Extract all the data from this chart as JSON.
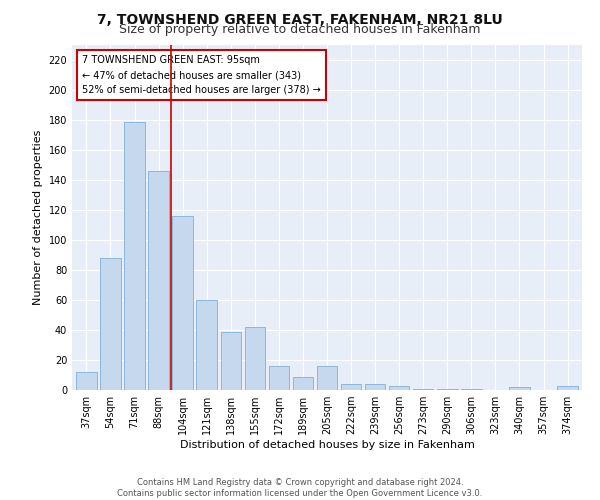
{
  "title": "7, TOWNSHEND GREEN EAST, FAKENHAM, NR21 8LU",
  "subtitle": "Size of property relative to detached houses in Fakenham",
  "xlabel": "Distribution of detached houses by size in Fakenham",
  "ylabel": "Number of detached properties",
  "categories": [
    "37sqm",
    "54sqm",
    "71sqm",
    "88sqm",
    "104sqm",
    "121sqm",
    "138sqm",
    "155sqm",
    "172sqm",
    "189sqm",
    "205sqm",
    "222sqm",
    "239sqm",
    "256sqm",
    "273sqm",
    "290sqm",
    "306sqm",
    "323sqm",
    "340sqm",
    "357sqm",
    "374sqm"
  ],
  "values": [
    12,
    88,
    179,
    146,
    116,
    60,
    39,
    42,
    16,
    9,
    16,
    4,
    4,
    3,
    1,
    1,
    1,
    0,
    2,
    0,
    3
  ],
  "bar_color": "#c5d8ee",
  "bar_edge_color": "#7fb0d8",
  "vline_x": 3.5,
  "vline_color": "#cc0000",
  "annotation_text": "7 TOWNSHEND GREEN EAST: 95sqm\n← 47% of detached houses are smaller (343)\n52% of semi-detached houses are larger (378) →",
  "annotation_box_color": "#ffffff",
  "annotation_box_edge_color": "#cc0000",
  "ylim": [
    0,
    230
  ],
  "yticks": [
    0,
    20,
    40,
    60,
    80,
    100,
    120,
    140,
    160,
    180,
    200,
    220
  ],
  "footer": "Contains HM Land Registry data © Crown copyright and database right 2024.\nContains public sector information licensed under the Open Government Licence v3.0.",
  "fig_bg_color": "#ffffff",
  "plot_bg_color": "#e8eef8",
  "grid_color": "#ffffff",
  "title_fontsize": 10,
  "subtitle_fontsize": 9,
  "tick_fontsize": 7,
  "ylabel_fontsize": 8,
  "xlabel_fontsize": 8,
  "footer_fontsize": 6
}
